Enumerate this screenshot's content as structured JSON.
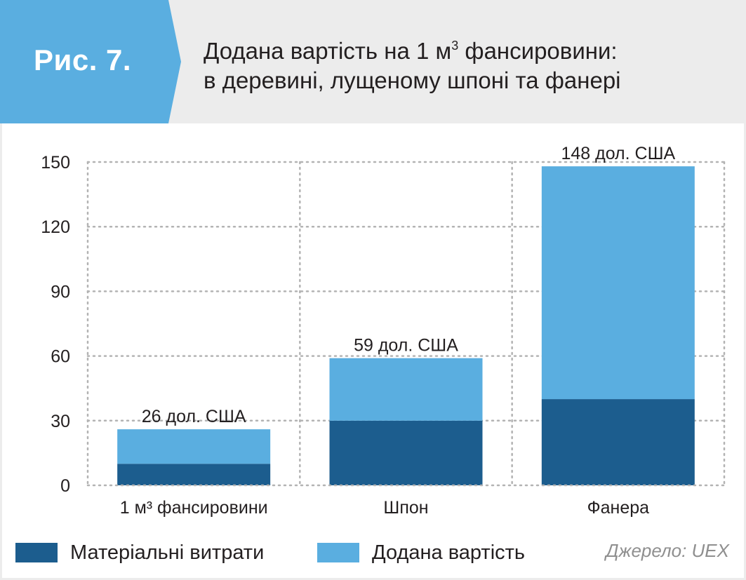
{
  "header": {
    "badge": "Рис. 7.",
    "title_line1_pre": "Додана вартість на 1 м",
    "title_line1_sup": "3",
    "title_line1_post": " фансировини:",
    "title_line2": "в деревині, лущеному шпоні та фанері"
  },
  "colors": {
    "header_bg": "#ececec",
    "badge_bg": "#5aaee0",
    "material": "#1c5d8e",
    "added": "#5aaee0",
    "grid": "#b3b3b3"
  },
  "chart_data": {
    "type": "bar",
    "stacked": true,
    "categories": [
      "1 м³ фансировини",
      "Шпон",
      "Фанера"
    ],
    "series": [
      {
        "name": "Матеріальні витрати",
        "values": [
          10,
          30,
          40
        ]
      },
      {
        "name": "Додана вартість",
        "values": [
          16,
          29,
          108
        ]
      }
    ],
    "totals": [
      26,
      59,
      148
    ],
    "total_labels": [
      "26 дол. США",
      "59 дол. США",
      "148 дол. США"
    ],
    "yticks": [
      0,
      30,
      60,
      90,
      120,
      150
    ],
    "ylim": [
      0,
      150
    ],
    "grid": true,
    "legend_position": "bottom-left"
  },
  "legend": {
    "material": "Матеріальні витрати",
    "added": "Додана вартість"
  },
  "source": "Джерело: UEX"
}
